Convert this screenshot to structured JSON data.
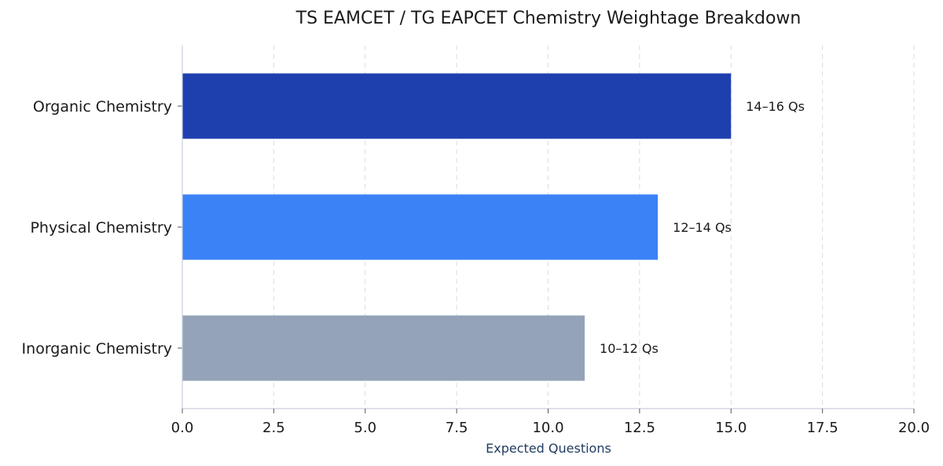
{
  "chart_data": {
    "type": "bar",
    "orientation": "horizontal",
    "title": "TS EAMCET / TG EAPCET Chemistry Weightage Breakdown",
    "xlabel": "Expected Questions",
    "ylabel": "",
    "xlim": [
      0,
      20
    ],
    "xticks": [
      0,
      2.5,
      5,
      7.5,
      10,
      12.5,
      15,
      17.5,
      20
    ],
    "xtick_labels": [
      "0.0",
      "2.5",
      "5.0",
      "7.5",
      "10.0",
      "12.5",
      "15.0",
      "17.5",
      "20.0"
    ],
    "grid": "vertical dashed",
    "categories": [
      "Organic Chemistry",
      "Physical Chemistry",
      "Inorganic Chemistry"
    ],
    "values": [
      15,
      13,
      11
    ],
    "data_labels": [
      "14–16 Qs",
      "12–14 Qs",
      "10–12 Qs"
    ],
    "colors": [
      "#1e40af",
      "#3b82f6",
      "#94a3b8"
    ]
  }
}
